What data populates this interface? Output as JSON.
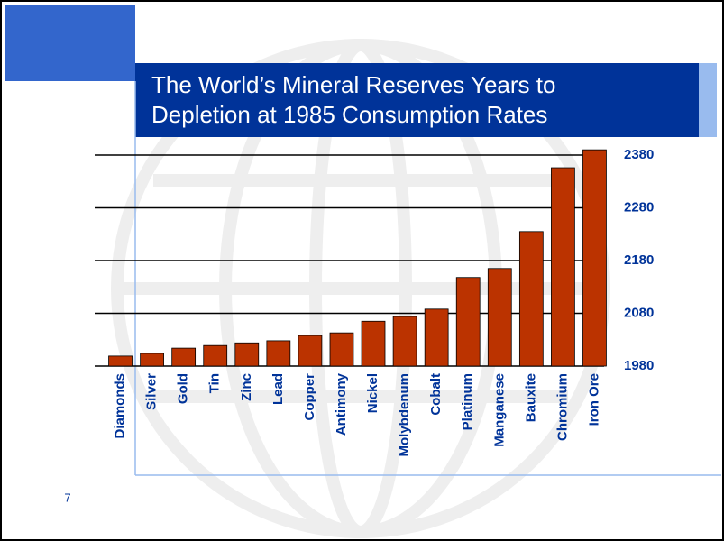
{
  "slide_number": "7",
  "chart_data": {
    "type": "bar",
    "title": "The World’s Mineral Reserves Years to\nDepletion at 1985 Consumption Rates",
    "categories": [
      "Diamonds",
      "Silver",
      "Gold",
      "Tin",
      "Zinc",
      "Lead",
      "Copper",
      "Antimony",
      "Nickel",
      "Molybdenum",
      "Cobalt",
      "Platinum",
      "Manganese",
      "Bauxite",
      "Chromium",
      "Iron Ore"
    ],
    "values": [
      1999,
      2004,
      2014,
      2019,
      2024,
      2028,
      2038,
      2043,
      2065,
      2074,
      2088,
      2148,
      2165,
      2235,
      2356,
      2390
    ],
    "color": "#bb3300",
    "ylim": [
      1980,
      2380
    ],
    "yticks": [
      1980,
      2080,
      2180,
      2280,
      2380
    ],
    "grid": true
  }
}
